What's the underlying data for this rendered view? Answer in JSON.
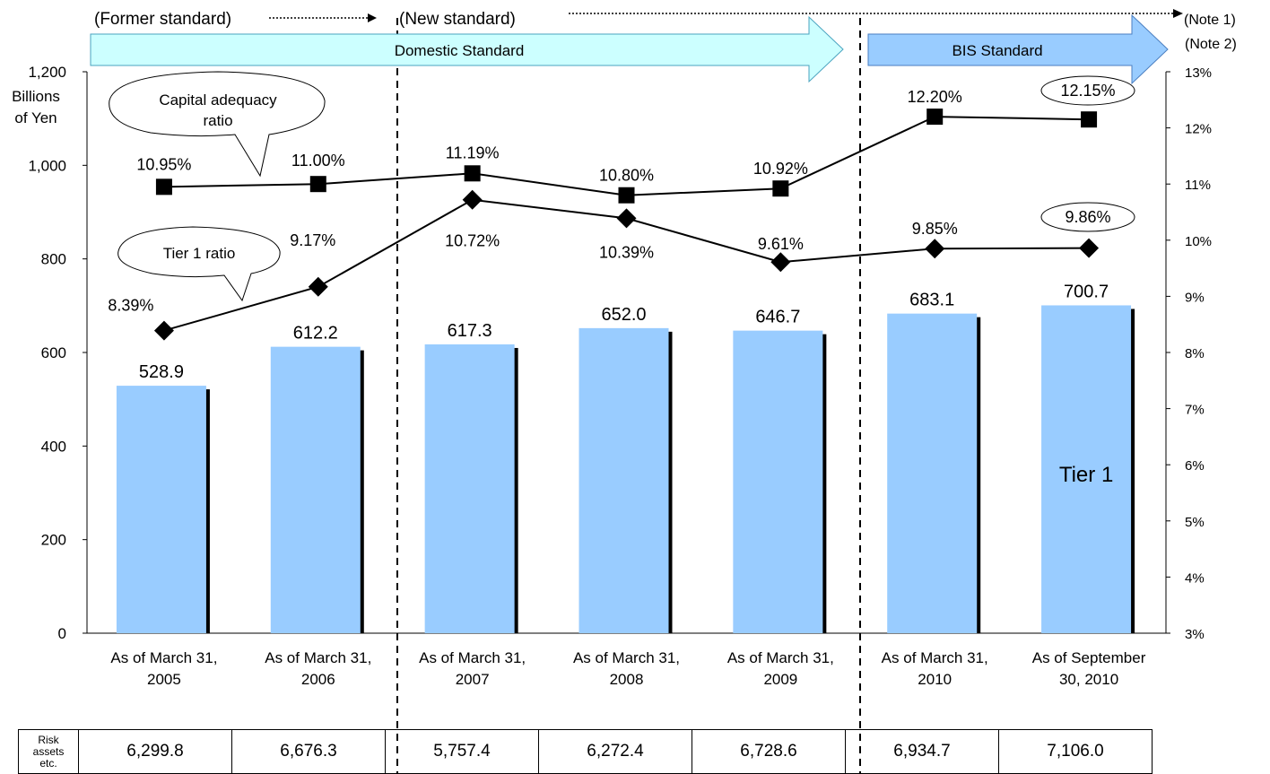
{
  "chart_data": {
    "type": "bar",
    "categories": [
      [
        "As of March 31,",
        "2005"
      ],
      [
        "As of March 31,",
        "2006"
      ],
      [
        "As of March 31,",
        "2007"
      ],
      [
        "As of March 31,",
        "2008"
      ],
      [
        "As of March 31,",
        "2009"
      ],
      [
        "As of March 31,",
        "2010"
      ],
      [
        "As of September",
        "30, 2010"
      ]
    ],
    "bar_series": {
      "name": "Tier 1",
      "values": [
        528.9,
        612.2,
        617.3,
        652.0,
        646.7,
        683.1,
        700.7
      ],
      "labels": [
        "528.9",
        "612.2",
        "617.3",
        "652.0",
        "646.7",
        "683.1",
        "700.7"
      ],
      "color": "#99ccff"
    },
    "line_series": [
      {
        "name": "Capital adequacy ratio",
        "marker": "square",
        "values": [
          10.95,
          11.0,
          11.19,
          10.8,
          10.92,
          12.2,
          12.15
        ],
        "labels": [
          "10.95%",
          "11.00%",
          "11.19%",
          "10.80%",
          "10.92%",
          "12.20%",
          "12.15%"
        ]
      },
      {
        "name": "Tier 1 ratio",
        "marker": "diamond",
        "values": [
          8.39,
          9.17,
          10.72,
          10.39,
          9.61,
          9.85,
          9.86
        ],
        "labels": [
          "8.39%",
          "9.17%",
          "10.72%",
          "10.39%",
          "9.61%",
          "9.85%",
          "9.86%"
        ]
      }
    ],
    "y_left": {
      "label": [
        "Billions",
        "of Yen"
      ],
      "ylim": [
        0,
        1200
      ],
      "ticks": [
        "0",
        "200",
        "400",
        "600",
        "800",
        "1,000",
        "1,200"
      ]
    },
    "y_right": {
      "ylim": [
        3,
        13
      ],
      "ticks": [
        "3%",
        "4%",
        "5%",
        "6%",
        "7%",
        "8%",
        "9%",
        "10%",
        "11%",
        "12%",
        "13%"
      ]
    },
    "callouts": {
      "capital_adequacy": [
        "Capital adequacy",
        "ratio"
      ],
      "tier1": "Tier 1 ratio"
    },
    "standards": {
      "former": "(Former standard)",
      "new": "(New standard)",
      "note1": "(Note 1)",
      "note2": "(Note 2)",
      "domestic": "Domestic Standard",
      "bis": "BIS Standard"
    },
    "risk_assets": {
      "label": [
        "Risk",
        "assets",
        "etc."
      ],
      "values": [
        "6,299.8",
        "6,676.3",
        "5,757.4",
        "6,272.4",
        "6,728.6",
        "6,934.7",
        "7,106.0"
      ]
    },
    "colors": {
      "bar": "#99ccff",
      "domestic_arrow": "#ccffff",
      "bis_arrow": "#99ccff",
      "line": "#000000"
    }
  }
}
